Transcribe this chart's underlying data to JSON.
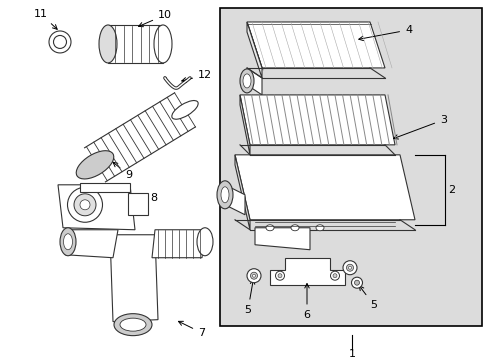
{
  "white": "#ffffff",
  "black": "#000000",
  "line_color": "#333333",
  "bg_panel": "#dcdcdc",
  "figsize": [
    4.89,
    3.6
  ],
  "dpi": 100,
  "label_fs": 8
}
